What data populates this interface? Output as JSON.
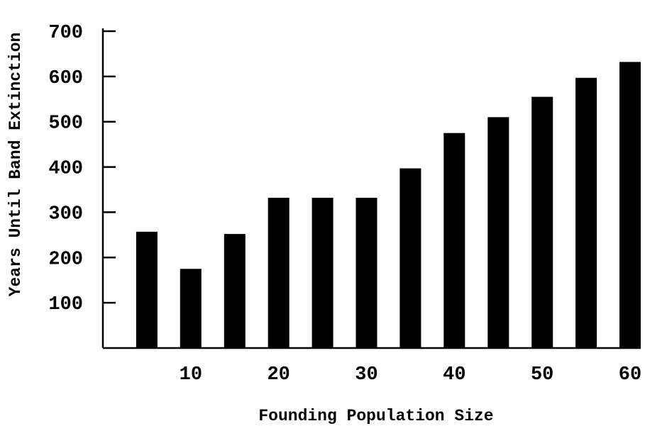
{
  "chart_data": {
    "type": "bar",
    "title": "",
    "xlabel": "Founding Population Size",
    "ylabel": "Years Until Band Extinction",
    "x": [
      5,
      10,
      15,
      20,
      25,
      30,
      35,
      40,
      45,
      50,
      55,
      60
    ],
    "values": [
      257,
      175,
      252,
      332,
      332,
      332,
      397,
      475,
      510,
      555,
      597,
      632
    ],
    "xticks": [
      10,
      20,
      30,
      40,
      50,
      60
    ],
    "yticks": [
      100,
      200,
      300,
      400,
      500,
      600,
      700
    ],
    "xlim": [
      0,
      60
    ],
    "ylim": [
      0,
      700
    ],
    "grid": false,
    "bar_color": "#000000"
  }
}
